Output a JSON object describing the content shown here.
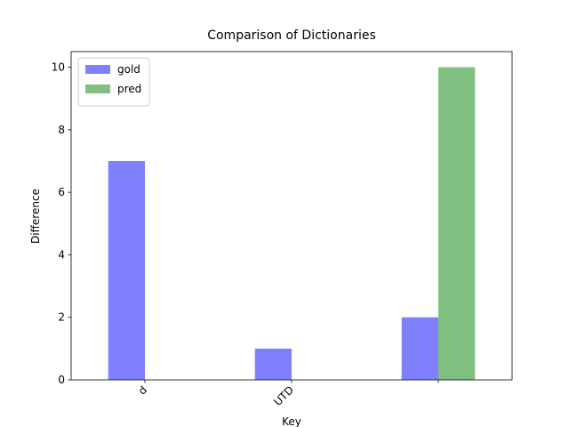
{
  "chart_data": {
    "type": "bar",
    "title": "Comparison of Dictionaries",
    "x_label": "Key",
    "y_label": "Difference",
    "categories": [
      "d",
      "UTD",
      null
    ],
    "series": [
      {
        "name": "gold",
        "color": "#8080ff",
        "values": [
          7,
          1,
          2
        ]
      },
      {
        "name": "pred",
        "color": "#80c080",
        "values": [
          0,
          0,
          10
        ]
      }
    ],
    "ylim": [
      0,
      10.5
    ],
    "yticks": [
      0,
      2,
      4,
      6,
      8,
      10
    ],
    "grid": false,
    "legend": "upper left"
  }
}
